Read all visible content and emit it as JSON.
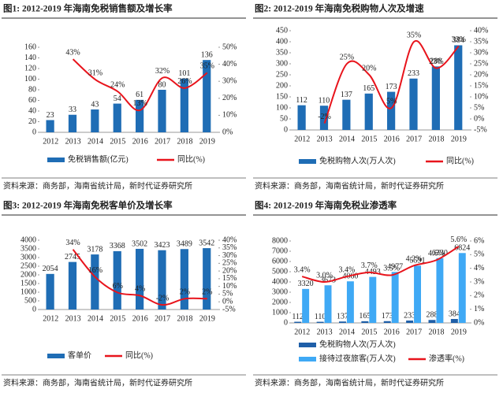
{
  "chart_data": [
    {
      "type": "bar",
      "title": "图1:  2012-2019 年海南免税销售额及增长率",
      "source": "资料来源：商务部，海南省统计局，新时代证券研究所",
      "categories": [
        "2012",
        "2013",
        "2014",
        "2015",
        "2016",
        "2017",
        "2018",
        "2019"
      ],
      "series": [
        {
          "name": "免税销售额(亿元)",
          "color": "#1f6db5",
          "kind": "bar",
          "values": [
            23,
            33,
            43,
            54,
            61,
            80,
            101,
            136
          ]
        },
        {
          "name": "同比(%)",
          "color": "#e8141c",
          "kind": "line",
          "axis": "y2",
          "values": [
            null,
            43,
            31,
            24,
            13,
            32,
            26,
            35
          ],
          "value_labels": [
            null,
            "43%",
            "31%",
            "24%",
            "13%",
            "32%",
            "26%",
            "35%"
          ]
        }
      ],
      "ylim": [
        0,
        160
      ],
      "yticks": [
        0,
        20,
        40,
        60,
        80,
        100,
        120,
        140,
        160
      ],
      "y2lim": [
        0,
        50
      ],
      "y2ticks": [
        {
          "value": 0,
          "label": "0%"
        },
        {
          "value": 10,
          "label": "10%"
        },
        {
          "value": 20,
          "label": "20%"
        },
        {
          "value": 30,
          "label": "30%"
        },
        {
          "value": 40,
          "label": "40%"
        },
        {
          "value": 50,
          "label": "50%"
        }
      ]
    },
    {
      "type": "bar",
      "title": "图2:  2012-2019 年海南免税购物人次及增速",
      "source": "资料来源：商务部，海南省统计局，新时代证券研究所",
      "categories": [
        "2012",
        "2013",
        "2014",
        "2015",
        "2016",
        "2017",
        "2018",
        "2019"
      ],
      "series": [
        {
          "name": "免税购物人次(万人次)",
          "color": "#1f6db5",
          "kind": "bar",
          "values": [
            112,
            110,
            137,
            165,
            173,
            233,
            288,
            384
          ]
        },
        {
          "name": "同比(%)",
          "color": "#e8141c",
          "kind": "line",
          "axis": "y2",
          "values": [
            null,
            -2,
            25,
            20,
            5,
            35,
            23,
            33
          ],
          "value_labels": [
            null,
            "-2%",
            "25%",
            "20%",
            "5%",
            "35%",
            "23%",
            "33%"
          ]
        }
      ],
      "ylim": [
        0,
        450
      ],
      "yticks": [
        0,
        50,
        100,
        150,
        200,
        250,
        300,
        350,
        400,
        450
      ],
      "y2lim": [
        -5,
        40
      ],
      "y2ticks": [
        {
          "value": -5,
          "label": "-5%"
        },
        {
          "value": 0,
          "label": "0%"
        },
        {
          "value": 5,
          "label": "5%"
        },
        {
          "value": 10,
          "label": "10%"
        },
        {
          "value": 15,
          "label": "15%"
        },
        {
          "value": 20,
          "label": "20%"
        },
        {
          "value": 25,
          "label": "25%"
        },
        {
          "value": 30,
          "label": "30%"
        },
        {
          "value": 35,
          "label": "35%"
        },
        {
          "value": 40,
          "label": "40%"
        }
      ]
    },
    {
      "type": "bar",
      "title": "图3:  2012-2019 年海南免税客单价及增长率",
      "source": "资料来源：商务部，海南省统计局，新时代证券研究所",
      "categories": [
        "2012",
        "2013",
        "2014",
        "2015",
        "2016",
        "2017",
        "2018",
        "2019"
      ],
      "series": [
        {
          "name": "客单价",
          "color": "#1f6db5",
          "kind": "bar",
          "values": [
            2054,
            2745,
            3178,
            3368,
            3502,
            3423,
            3489,
            3542
          ]
        },
        {
          "name": "同比(%)",
          "color": "#e8141c",
          "kind": "line",
          "axis": "y2",
          "values": [
            null,
            34,
            16,
            6,
            4,
            -2,
            2,
            2
          ],
          "value_labels": [
            null,
            "34%",
            "16%",
            "6%",
            "4%",
            "-2%",
            "2%",
            "2%"
          ]
        }
      ],
      "ylim": [
        0,
        4000
      ],
      "yticks": [
        0,
        500,
        1000,
        1500,
        2000,
        2500,
        3000,
        3500,
        4000
      ],
      "y2lim": [
        -5,
        40
      ],
      "y2ticks": [
        {
          "value": -5,
          "label": "-5%"
        },
        {
          "value": 0,
          "label": "0%"
        },
        {
          "value": 5,
          "label": "5%"
        },
        {
          "value": 10,
          "label": "10%"
        },
        {
          "value": 15,
          "label": "15%"
        },
        {
          "value": 20,
          "label": "20%"
        },
        {
          "value": 25,
          "label": "25%"
        },
        {
          "value": 30,
          "label": "30%"
        },
        {
          "value": 35,
          "label": "35%"
        },
        {
          "value": 40,
          "label": "40%"
        }
      ]
    },
    {
      "type": "bar",
      "title": "图4:  2012-2019 年海南免税业渗透率",
      "source": "资料来源：商务部，海南省统计局，新时代证券研究所",
      "categories": [
        "2012",
        "2013",
        "2014",
        "2015",
        "2016",
        "2017",
        "2018",
        "2019"
      ],
      "series": [
        {
          "name": "免税购物人次(万人次)",
          "color": "#1f5fa8",
          "kind": "bar",
          "values": [
            112,
            110,
            137,
            165,
            173,
            233,
            288,
            384
          ]
        },
        {
          "name": "接待过夜旅客(万人次)",
          "color": "#3fa9f5",
          "kind": "bar",
          "values": [
            3320,
            3673,
            4060,
            4493,
            4977,
            5591,
            6330,
            6824
          ]
        },
        {
          "name": "渗透率(%)",
          "color": "#e8141c",
          "kind": "line",
          "axis": "y2",
          "values": [
            3.4,
            3.0,
            3.4,
            3.7,
            3.5,
            4.2,
            4.6,
            5.6
          ],
          "value_labels": [
            "3.4%",
            "3.0%",
            "3.4%",
            "3.7%",
            "3.5%",
            "4.2%",
            "4.6%",
            "5.6%"
          ]
        }
      ],
      "ylim": [
        0,
        8000
      ],
      "yticks": [
        0,
        1000,
        2000,
        3000,
        4000,
        5000,
        6000,
        7000,
        8000
      ],
      "y2lim": [
        0,
        6
      ],
      "y2ticks": [
        {
          "value": 0,
          "label": "0%"
        },
        {
          "value": 1,
          "label": "1%"
        },
        {
          "value": 2,
          "label": "2%"
        },
        {
          "value": 3,
          "label": "3%"
        },
        {
          "value": 4,
          "label": "4%"
        },
        {
          "value": 5,
          "label": "5%"
        },
        {
          "value": 6,
          "label": "6%"
        }
      ]
    }
  ]
}
